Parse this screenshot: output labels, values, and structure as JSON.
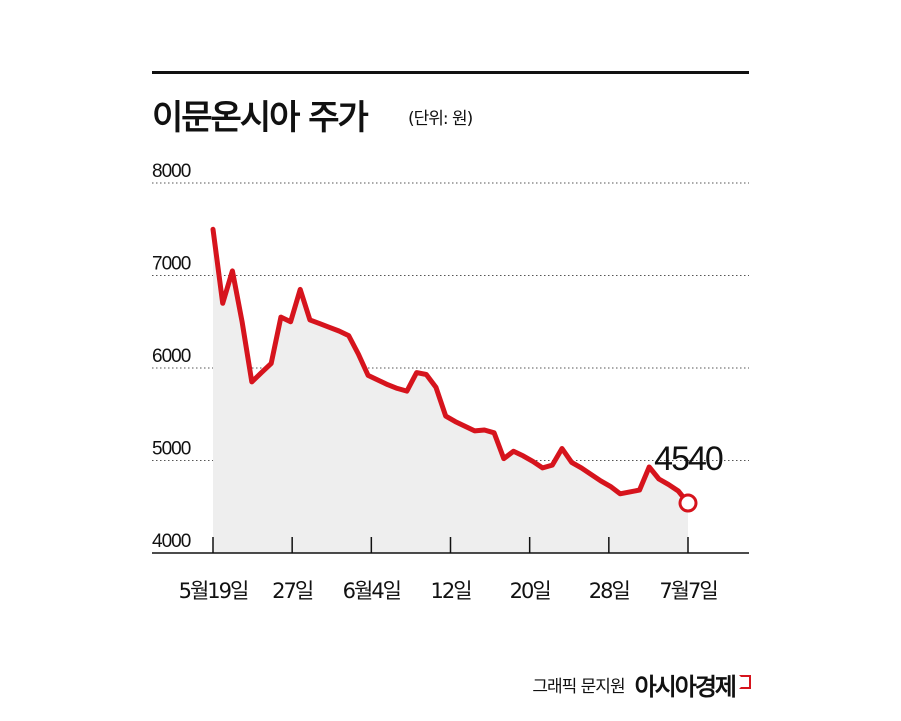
{
  "chart_data": {
    "type": "line",
    "title": "이문온시아 주가",
    "unit": "(단위: 원)",
    "xlabel": "",
    "ylabel": "",
    "ylim": [
      4000,
      8000
    ],
    "y_ticks": [
      "8000",
      "7000",
      "6000",
      "5000",
      "4000"
    ],
    "x_ticks": [
      "5월19일",
      "27일",
      "6월4일",
      "12일",
      "20일",
      "28일",
      "7월7일"
    ],
    "grid": true,
    "values": [
      7500,
      6700,
      7050,
      6500,
      5850,
      5950,
      6050,
      6550,
      6500,
      6850,
      6520,
      6480,
      6440,
      6400,
      6350,
      6150,
      5920,
      5870,
      5820,
      5780,
      5750,
      5950,
      5930,
      5790,
      5480,
      5420,
      5370,
      5320,
      5330,
      5300,
      5020,
      5100,
      5050,
      4990,
      4920,
      4950,
      5130,
      4980,
      4920,
      4850,
      4780,
      4720,
      4640,
      4660,
      4680,
      4930,
      4800,
      4740,
      4670,
      4540
    ],
    "last_value_label": "4540",
    "line_color": "#d6141d",
    "area_color": "#eeeeee"
  },
  "footer": {
    "credit": "그래픽 문지원",
    "brand": "아시아경제"
  }
}
